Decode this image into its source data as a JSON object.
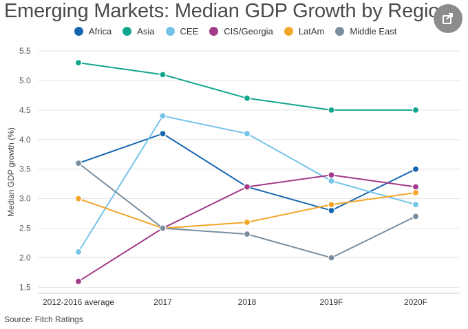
{
  "share_icon": "share-icon",
  "chart_data": {
    "type": "line",
    "title": "Emerging Markets: Median GDP Growth by Region",
    "xlabel": "",
    "ylabel": "Median GDP growth (%)",
    "categories": [
      "2012-2016 average",
      "2017",
      "2018",
      "2019F",
      "2020F"
    ],
    "ylim": [
      1.4,
      5.5
    ],
    "yticks": [
      "1.5",
      "2.0",
      "2.5",
      "3.0",
      "3.5",
      "4.0",
      "4.5",
      "5.0",
      "5.5"
    ],
    "grid": true,
    "legend_position": "top",
    "series": [
      {
        "name": "Africa",
        "color": "#1565b0",
        "values": [
          3.6,
          4.1,
          3.2,
          2.8,
          3.5
        ]
      },
      {
        "name": "Asia",
        "color": "#12a58e",
        "values": [
          5.3,
          5.1,
          4.7,
          4.5,
          4.5
        ]
      },
      {
        "name": "CEE",
        "color": "#74c3e8",
        "values": [
          2.1,
          4.4,
          4.1,
          3.3,
          2.9
        ]
      },
      {
        "name": "CIS/Georgia",
        "color": "#a23a87",
        "values": [
          1.6,
          2.5,
          3.2,
          3.4,
          3.2
        ]
      },
      {
        "name": "LatAm",
        "color": "#f2a62a",
        "values": [
          3.0,
          2.5,
          2.6,
          2.9,
          3.1
        ]
      },
      {
        "name": "Middle East",
        "color": "#7a8e9e",
        "values": [
          3.6,
          2.5,
          2.4,
          2.0,
          2.7
        ]
      }
    ],
    "source": "Source: Fitch Ratings"
  }
}
